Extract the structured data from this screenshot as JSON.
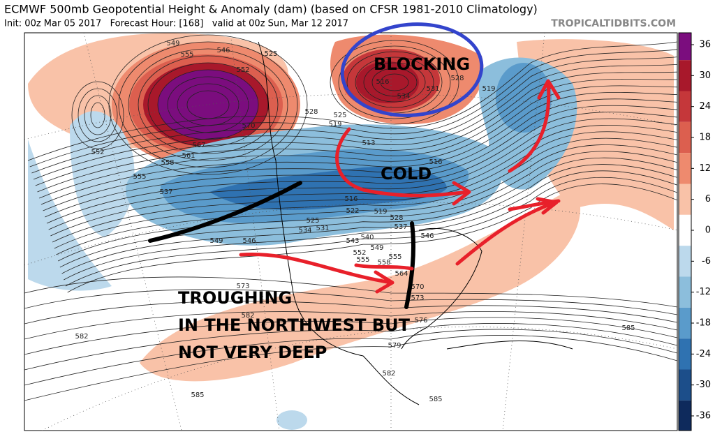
{
  "header": {
    "title": "ECMWF 500mb Geopotential Height & Anomaly (dam) (based on CFSR 1981-2010 Climatology)",
    "subtitle": "Init: 00z Mar 05 2017   Forecast Hour: [168]   valid at 00z Sun, Mar 12 2017",
    "source": "TROPICALTIDBITS.COM"
  },
  "annotations": {
    "blocking": "BLOCKING",
    "cold": "COLD",
    "troughing": [
      "TROUGHING",
      "IN THE NORTHWEST BUT",
      "NOT VERY DEEP"
    ]
  },
  "colorbar": {
    "ticks": [
      36,
      30,
      24,
      18,
      12,
      6,
      0,
      -6,
      -12,
      -18,
      -24,
      -30,
      -36
    ],
    "colors": [
      "#7b0d7e",
      "#a8182b",
      "#c5373a",
      "#dc5f4f",
      "#ee8a6e",
      "#f9c2a8",
      "#ffffff",
      "#bcd9ec",
      "#8cbedc",
      "#5a9bcb",
      "#2f72b1",
      "#1c4e8a",
      "#0e2a5c"
    ]
  },
  "contour_labels": [
    549,
    555,
    546,
    525,
    552,
    570,
    567,
    561,
    558,
    555,
    552,
    537,
    528,
    525,
    519,
    513,
    516,
    516,
    528,
    534,
    531,
    519,
    516,
    522,
    519,
    528,
    531,
    534,
    525,
    537,
    540,
    543,
    546,
    549,
    552,
    549,
    555,
    555,
    558,
    546,
    564,
    570,
    573,
    573,
    576,
    579,
    582,
    582,
    582,
    585,
    585,
    585
  ]
}
